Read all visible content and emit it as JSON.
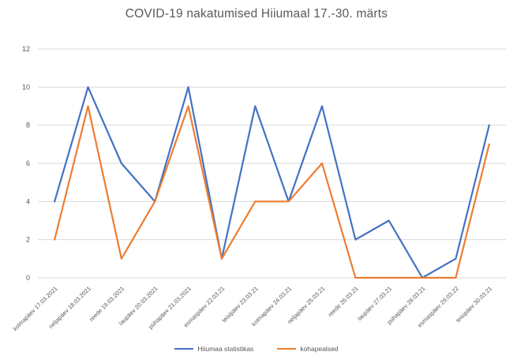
{
  "title": "COVID-19 nakatumised Hiiumaal 17.-30. märts",
  "colors": {
    "series1": "#4472C4",
    "series2": "#ED7D31",
    "gridline": "#D9D9D9",
    "axis_text": "#595959",
    "title_text": "#595959",
    "background": "#FFFFFF"
  },
  "chart_data": {
    "type": "line",
    "title": "COVID-19 nakatumised Hiiumaal 17.-30. märts",
    "categories": [
      "kolmapäev 17.03.2021",
      "neljapäev 18.03.2021",
      "reede 19.03.2021",
      "laupäev 20.03.2021",
      "pühapäev 21.03.2021",
      "esmaspäev 22.03.21",
      "teisipäev 23.03.21",
      "kolmapäev 24.03.21",
      "neljapäev 25.03.21",
      "reede 26.03.21",
      "laupäev 27.03.21",
      "pühapäev 28.03.21",
      "esmaspäev 29.03.22",
      "teisipäev 30.03.21"
    ],
    "series": [
      {
        "name": "Hiiumaa statistikas",
        "color": "#4472C4",
        "values": [
          4,
          10,
          6,
          4,
          10,
          1,
          9,
          4,
          9,
          2,
          3,
          0,
          1,
          8
        ]
      },
      {
        "name": "kohapealsed",
        "color": "#ED7D31",
        "values": [
          2,
          9,
          1,
          4,
          9,
          1,
          4,
          4,
          6,
          0,
          0,
          0,
          0,
          7
        ]
      }
    ],
    "xlabel": "",
    "ylabel": "",
    "ylim": [
      0,
      12
    ],
    "yticks": [
      0,
      2,
      4,
      6,
      8,
      10,
      12
    ],
    "grid": true,
    "legend_position": "bottom",
    "x_label_rotation_deg": 45
  }
}
